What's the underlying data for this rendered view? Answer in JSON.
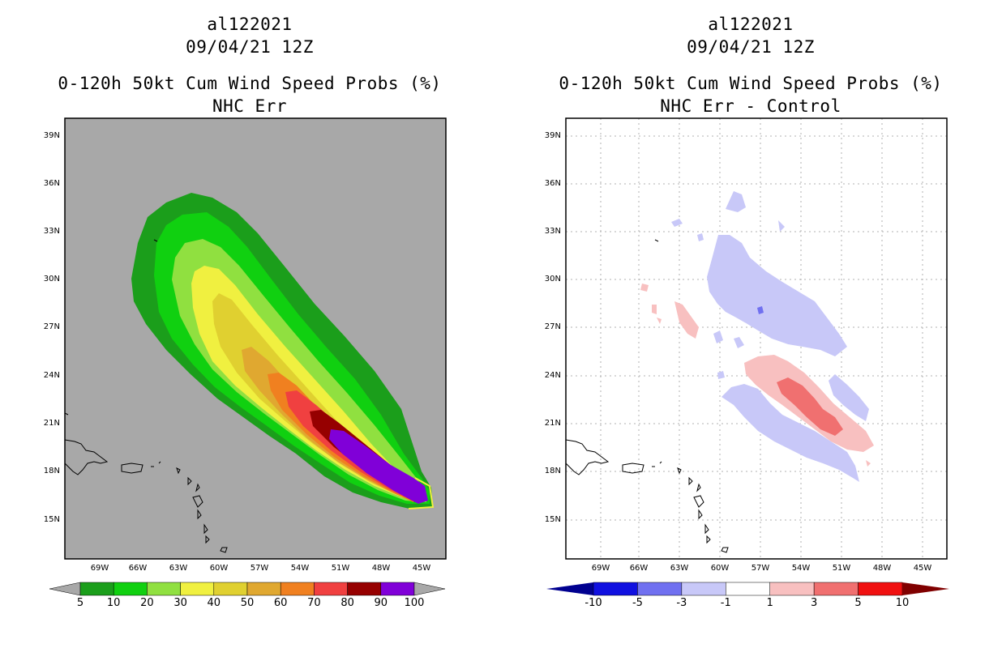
{
  "left": {
    "storm_id": "al122021",
    "datetime": "09/04/21 12Z",
    "product": "0-120h 50kt Cum Wind Speed Probs (%)",
    "subtitle": "NHC Err",
    "colorbar": {
      "ticks": [
        "5",
        "10",
        "20",
        "30",
        "40",
        "50",
        "60",
        "70",
        "80",
        "90",
        "100"
      ],
      "colors": [
        "#1b9e1b",
        "#10d010",
        "#90e040",
        "#f0f040",
        "#e0d030",
        "#e0a830",
        "#f08020",
        "#f04040",
        "#960000",
        "#8000d8"
      ],
      "underflow_color": "#a8a8a8",
      "overflow_color": "#a8a8a8"
    }
  },
  "right": {
    "storm_id": "al122021",
    "datetime": "09/04/21 12Z",
    "product": "0-120h 50kt Cum Wind Speed Probs (%)",
    "subtitle": "NHC Err - Control",
    "colorbar": {
      "ticks": [
        "-10",
        "-5",
        "-3",
        "-1",
        "1",
        "3",
        "5",
        "10"
      ],
      "colors": [
        "#1010e0",
        "#7070f0",
        "#c8c8f8",
        "#ffffff",
        "#f8c0c0",
        "#f07070",
        "#f01010"
      ],
      "underflow_color": "#000090",
      "overflow_color": "#800000"
    }
  },
  "axes": {
    "lat_labels": [
      "39N",
      "36N",
      "33N",
      "30N",
      "27N",
      "24N",
      "21N",
      "18N",
      "15N"
    ],
    "lon_labels": [
      "69W",
      "66W",
      "63W",
      "60W",
      "57W",
      "54W",
      "51W",
      "48W",
      "45W"
    ]
  }
}
